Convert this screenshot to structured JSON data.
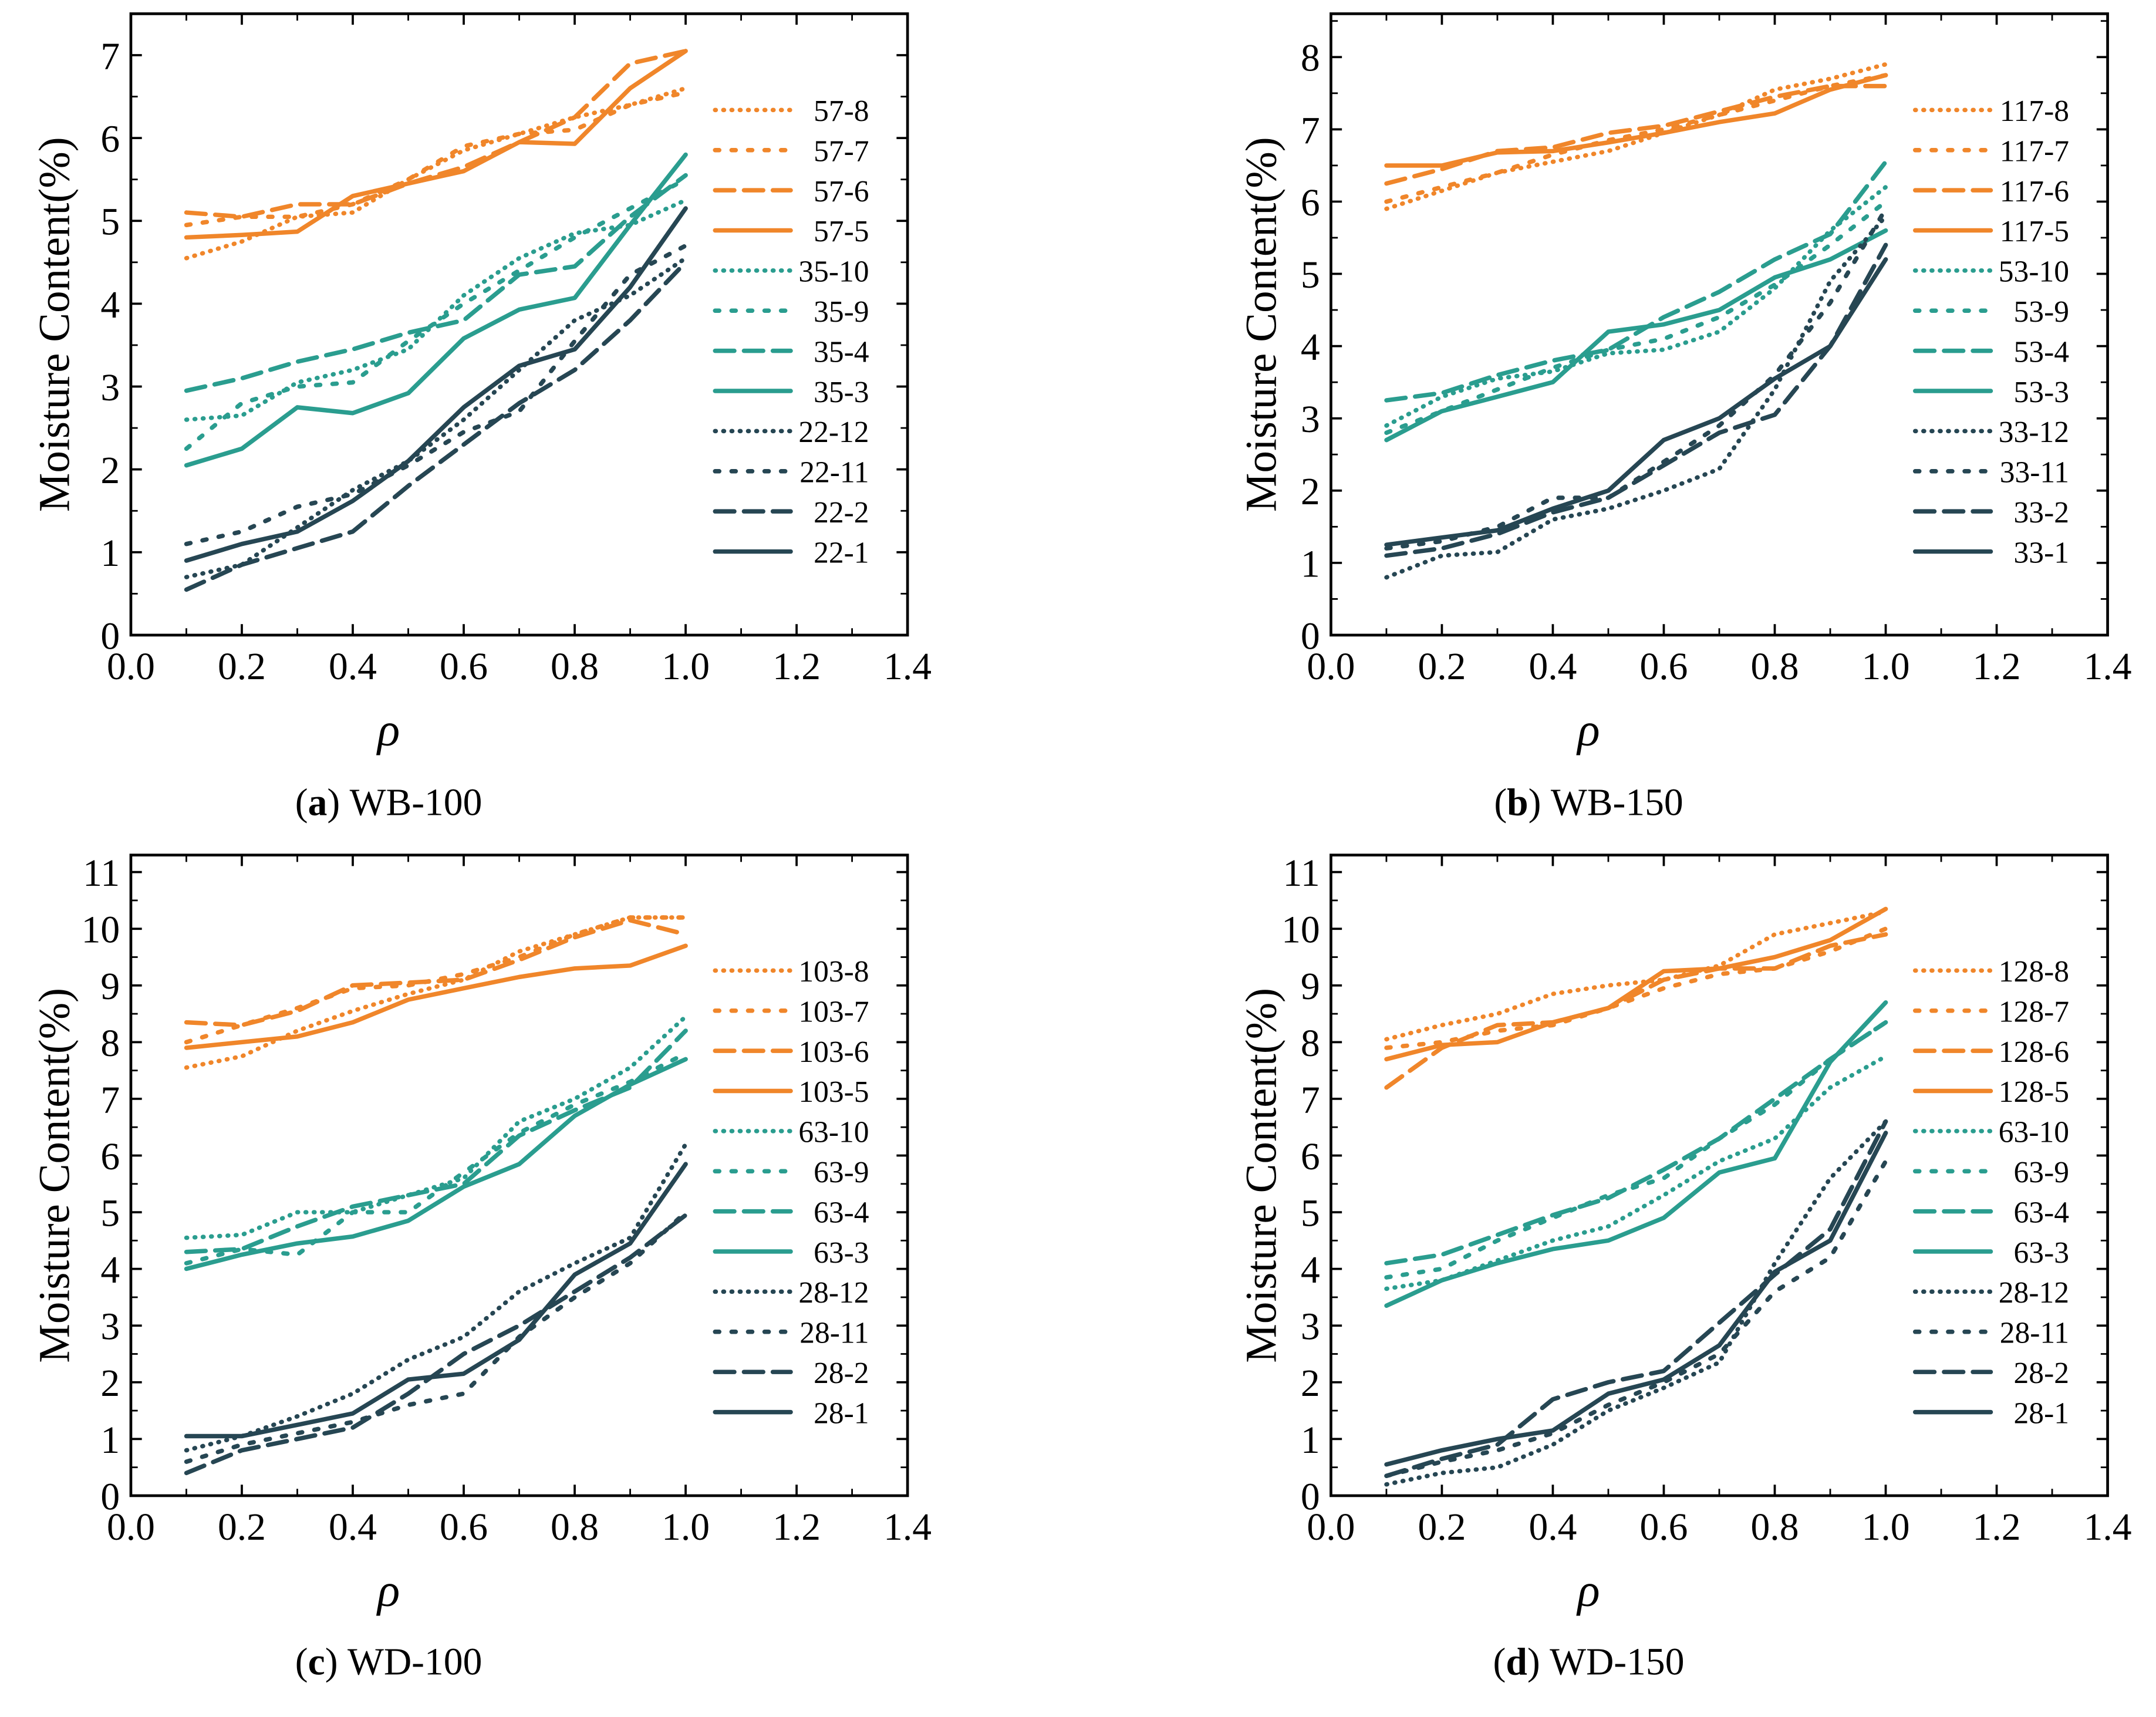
{
  "colors": {
    "orange": "#f0862a",
    "teal": "#2a9d8f",
    "dark": "#264653"
  },
  "chart_data": [
    {
      "type": "line",
      "panel_letter": "(a)",
      "title": "WB-100",
      "xlabel": "ρ",
      "ylabel": "Moisture Content(%)",
      "xlim": [
        0,
        1.4
      ],
      "ylim": [
        0,
        7.5
      ],
      "xticks": [
        "0.0",
        "0.2",
        "0.4",
        "0.6",
        "0.8",
        "1.0",
        "1.2",
        "1.4"
      ],
      "yticks": [
        "0",
        "1",
        "2",
        "3",
        "4",
        "5",
        "6",
        "7"
      ],
      "legend_position": "right",
      "x": [
        0.1,
        0.2,
        0.3,
        0.4,
        0.5,
        0.6,
        0.7,
        0.8,
        0.9,
        1.0
      ],
      "series": [
        {
          "name": "57-8",
          "color": "orange",
          "style": "dotted",
          "values": [
            4.55,
            4.75,
            5.05,
            5.1,
            5.5,
            5.85,
            6.05,
            6.25,
            6.4,
            6.6
          ]
        },
        {
          "name": "57-7",
          "color": "orange",
          "style": "short-dash",
          "values": [
            4.95,
            5.05,
            5.05,
            5.2,
            5.5,
            5.9,
            6.05,
            6.1,
            6.4,
            6.55
          ]
        },
        {
          "name": "57-6",
          "color": "orange",
          "style": "dashed",
          "values": [
            5.1,
            5.05,
            5.2,
            5.2,
            5.45,
            5.65,
            5.95,
            6.25,
            6.9,
            7.05
          ]
        },
        {
          "name": "57-5",
          "color": "orange",
          "style": "solid",
          "values": [
            4.8,
            4.83,
            4.87,
            5.3,
            5.45,
            5.6,
            5.95,
            5.93,
            6.6,
            7.05
          ]
        },
        {
          "name": "35-10",
          "color": "teal",
          "style": "dotted",
          "values": [
            2.6,
            2.65,
            3.05,
            3.2,
            3.45,
            4.1,
            4.55,
            4.85,
            4.95,
            5.25
          ]
        },
        {
          "name": "35-9",
          "color": "teal",
          "style": "short-dash",
          "values": [
            2.25,
            2.8,
            3.0,
            3.05,
            3.55,
            4.0,
            4.4,
            4.8,
            5.15,
            5.5
          ]
        },
        {
          "name": "35-4",
          "color": "teal",
          "style": "dashed",
          "values": [
            2.95,
            3.1,
            3.3,
            3.45,
            3.65,
            3.8,
            4.35,
            4.45,
            5.05,
            5.55
          ]
        },
        {
          "name": "35-3",
          "color": "teal",
          "style": "solid",
          "values": [
            2.05,
            2.25,
            2.75,
            2.68,
            2.92,
            3.58,
            3.93,
            4.07,
            4.95,
            5.8
          ]
        },
        {
          "name": "22-12",
          "color": "dark",
          "style": "dotted",
          "values": [
            0.7,
            0.85,
            1.3,
            1.75,
            2.1,
            2.6,
            3.2,
            3.8,
            4.1,
            4.55
          ]
        },
        {
          "name": "22-11",
          "color": "dark",
          "style": "short-dash",
          "values": [
            1.1,
            1.25,
            1.55,
            1.7,
            2.05,
            2.45,
            2.7,
            3.55,
            4.35,
            4.7
          ]
        },
        {
          "name": "22-2",
          "color": "dark",
          "style": "dashed",
          "values": [
            0.55,
            0.85,
            1.05,
            1.25,
            1.8,
            2.3,
            2.8,
            3.2,
            3.8,
            4.5
          ]
        },
        {
          "name": "22-1",
          "color": "dark",
          "style": "solid",
          "values": [
            0.9,
            1.1,
            1.25,
            1.62,
            2.1,
            2.75,
            3.25,
            3.45,
            4.2,
            5.15
          ]
        }
      ]
    },
    {
      "type": "line",
      "panel_letter": "(b)",
      "title": "WB-150",
      "xlabel": "ρ",
      "ylabel": "Moisture Content(%)",
      "xlim": [
        0,
        1.4
      ],
      "ylim": [
        0,
        8.6
      ],
      "xticks": [
        "0.0",
        "0.2",
        "0.4",
        "0.6",
        "0.8",
        "1.0",
        "1.2",
        "1.4"
      ],
      "yticks": [
        "0",
        "1",
        "2",
        "3",
        "4",
        "5",
        "6",
        "7",
        "8"
      ],
      "legend_position": "right",
      "x": [
        0.1,
        0.2,
        0.3,
        0.4,
        0.5,
        0.6,
        0.7,
        0.8,
        0.9,
        1.0
      ],
      "series": [
        {
          "name": "117-8",
          "color": "orange",
          "style": "dotted",
          "values": [
            5.9,
            6.15,
            6.4,
            6.55,
            6.7,
            6.95,
            7.2,
            7.55,
            7.7,
            7.9
          ]
        },
        {
          "name": "117-7",
          "color": "orange",
          "style": "short-dash",
          "values": [
            6.0,
            6.2,
            6.4,
            6.65,
            6.85,
            7.0,
            7.2,
            7.4,
            7.6,
            7.75
          ]
        },
        {
          "name": "117-6",
          "color": "orange",
          "style": "dashed",
          "values": [
            6.25,
            6.45,
            6.7,
            6.75,
            6.95,
            7.05,
            7.25,
            7.45,
            7.6,
            7.6
          ]
        },
        {
          "name": "117-5",
          "color": "orange",
          "style": "solid",
          "values": [
            6.5,
            6.5,
            6.68,
            6.7,
            6.82,
            6.95,
            7.1,
            7.22,
            7.55,
            7.75
          ]
        },
        {
          "name": "53-10",
          "color": "teal",
          "style": "dotted",
          "values": [
            2.9,
            3.3,
            3.55,
            3.65,
            3.9,
            3.95,
            4.2,
            4.8,
            5.6,
            6.2
          ]
        },
        {
          "name": "53-9",
          "color": "teal",
          "style": "short-dash",
          "values": [
            2.8,
            3.1,
            3.4,
            3.7,
            3.95,
            4.1,
            4.4,
            4.85,
            5.4,
            6.0
          ]
        },
        {
          "name": "53-4",
          "color": "teal",
          "style": "dashed",
          "values": [
            3.25,
            3.35,
            3.6,
            3.8,
            3.95,
            4.4,
            4.75,
            5.2,
            5.55,
            6.55
          ]
        },
        {
          "name": "53-3",
          "color": "teal",
          "style": "solid",
          "values": [
            2.7,
            3.1,
            3.3,
            3.5,
            4.2,
            4.3,
            4.5,
            4.95,
            5.2,
            5.6
          ]
        },
        {
          "name": "33-12",
          "color": "dark",
          "style": "dotted",
          "values": [
            0.8,
            1.1,
            1.15,
            1.6,
            1.75,
            2.0,
            2.3,
            3.4,
            4.9,
            5.8
          ]
        },
        {
          "name": "33-11",
          "color": "dark",
          "style": "short-dash",
          "values": [
            1.2,
            1.3,
            1.5,
            1.9,
            1.9,
            2.4,
            2.9,
            3.6,
            4.6,
            5.9
          ]
        },
        {
          "name": "33-2",
          "color": "dark",
          "style": "dashed",
          "values": [
            1.1,
            1.2,
            1.4,
            1.7,
            1.9,
            2.35,
            2.8,
            3.05,
            4.0,
            5.4
          ]
        },
        {
          "name": "33-1",
          "color": "dark",
          "style": "solid",
          "values": [
            1.25,
            1.35,
            1.45,
            1.75,
            2.0,
            2.7,
            3.0,
            3.55,
            4.0,
            5.2
          ]
        }
      ]
    },
    {
      "type": "line",
      "panel_letter": "(c)",
      "title": "WD-100",
      "xlabel": "ρ",
      "ylabel": "Moisture Content(%)",
      "xlim": [
        0,
        1.4
      ],
      "ylim": [
        0,
        11.3
      ],
      "xticks": [
        "0.0",
        "0.2",
        "0.4",
        "0.6",
        "0.8",
        "1.0",
        "1.2",
        "1.4"
      ],
      "yticks": [
        "0",
        "1",
        "2",
        "3",
        "4",
        "5",
        "6",
        "7",
        "8",
        "9",
        "10",
        "11"
      ],
      "legend_position": "right",
      "x": [
        0.1,
        0.2,
        0.3,
        0.4,
        0.5,
        0.6,
        0.7,
        0.8,
        0.9,
        1.0
      ],
      "series": [
        {
          "name": "103-8",
          "color": "orange",
          "style": "dotted",
          "values": [
            7.55,
            7.75,
            8.2,
            8.55,
            8.85,
            9.1,
            9.6,
            9.9,
            10.2,
            10.2
          ]
        },
        {
          "name": "103-7",
          "color": "orange",
          "style": "short-dash",
          "values": [
            8.0,
            8.3,
            8.6,
            8.95,
            9.0,
            9.2,
            9.5,
            9.9,
            10.2,
            10.2
          ]
        },
        {
          "name": "103-6",
          "color": "orange",
          "style": "dashed",
          "values": [
            8.35,
            8.3,
            8.55,
            9.0,
            9.05,
            9.1,
            9.45,
            9.85,
            10.15,
            9.9
          ]
        },
        {
          "name": "103-5",
          "color": "orange",
          "style": "solid",
          "values": [
            7.9,
            8.0,
            8.1,
            8.35,
            8.75,
            8.95,
            9.15,
            9.3,
            9.35,
            9.7
          ]
        },
        {
          "name": "63-10",
          "color": "teal",
          "style": "dotted",
          "values": [
            4.55,
            4.6,
            5.0,
            5.0,
            5.3,
            5.6,
            6.6,
            7.0,
            7.55,
            8.45
          ]
        },
        {
          "name": "63-9",
          "color": "teal",
          "style": "short-dash",
          "values": [
            4.1,
            4.35,
            4.25,
            5.0,
            5.0,
            5.7,
            6.4,
            6.9,
            7.3,
            7.8
          ]
        },
        {
          "name": "63-4",
          "color": "teal",
          "style": "dashed",
          "values": [
            4.3,
            4.35,
            4.75,
            5.1,
            5.3,
            5.5,
            6.35,
            6.8,
            7.2,
            8.2
          ]
        },
        {
          "name": "63-3",
          "color": "teal",
          "style": "solid",
          "values": [
            4.0,
            4.25,
            4.45,
            4.57,
            4.85,
            5.45,
            5.85,
            6.7,
            7.25,
            7.7
          ]
        },
        {
          "name": "28-12",
          "color": "dark",
          "style": "dotted",
          "values": [
            0.8,
            1.05,
            1.4,
            1.8,
            2.4,
            2.8,
            3.6,
            4.1,
            4.55,
            6.2
          ]
        },
        {
          "name": "28-11",
          "color": "dark",
          "style": "short-dash",
          "values": [
            0.6,
            0.9,
            1.1,
            1.3,
            1.6,
            1.8,
            2.8,
            3.5,
            4.1,
            5.0
          ]
        },
        {
          "name": "28-2",
          "color": "dark",
          "style": "dashed",
          "values": [
            0.4,
            0.8,
            1.0,
            1.2,
            1.8,
            2.5,
            3.0,
            3.6,
            4.2,
            4.95
          ]
        },
        {
          "name": "28-1",
          "color": "dark",
          "style": "solid",
          "values": [
            1.05,
            1.05,
            1.25,
            1.45,
            2.05,
            2.15,
            2.75,
            3.9,
            4.45,
            5.85
          ]
        }
      ]
    },
    {
      "type": "line",
      "panel_letter": "(d)",
      "title": "WD-150",
      "xlabel": "ρ",
      "ylabel": "Moisture Content(%)",
      "xlim": [
        0,
        1.4
      ],
      "ylim": [
        0,
        11.3
      ],
      "xticks": [
        "0.0",
        "0.2",
        "0.4",
        "0.6",
        "0.8",
        "1.0",
        "1.2",
        "1.4"
      ],
      "yticks": [
        "0",
        "1",
        "2",
        "3",
        "4",
        "5",
        "6",
        "7",
        "8",
        "9",
        "10",
        "11"
      ],
      "legend_position": "right",
      "x": [
        0.1,
        0.2,
        0.3,
        0.4,
        0.5,
        0.6,
        0.7,
        0.8,
        0.9,
        1.0
      ],
      "series": [
        {
          "name": "128-8",
          "color": "orange",
          "style": "dotted",
          "values": [
            8.05,
            8.3,
            8.5,
            8.85,
            9.0,
            9.1,
            9.35,
            9.9,
            10.1,
            10.3
          ]
        },
        {
          "name": "128-7",
          "color": "orange",
          "style": "short-dash",
          "values": [
            7.9,
            8.0,
            8.2,
            8.3,
            8.6,
            8.95,
            9.2,
            9.3,
            9.6,
            10.0
          ]
        },
        {
          "name": "128-6",
          "color": "orange",
          "style": "dashed",
          "values": [
            7.2,
            7.9,
            8.3,
            8.35,
            8.6,
            9.1,
            9.3,
            9.3,
            9.7,
            9.9
          ]
        },
        {
          "name": "128-5",
          "color": "orange",
          "style": "solid",
          "values": [
            7.7,
            7.95,
            8.0,
            8.35,
            8.6,
            9.25,
            9.3,
            9.5,
            9.8,
            10.35
          ]
        },
        {
          "name": "63-10",
          "color": "teal",
          "style": "dotted",
          "values": [
            3.65,
            3.8,
            4.15,
            4.5,
            4.75,
            5.3,
            5.9,
            6.3,
            7.2,
            7.75
          ]
        },
        {
          "name": "63-9",
          "color": "teal",
          "style": "short-dash",
          "values": [
            3.85,
            4.0,
            4.5,
            4.9,
            5.3,
            5.6,
            6.3,
            6.9,
            7.7,
            8.35
          ]
        },
        {
          "name": "63-4",
          "color": "teal",
          "style": "dashed",
          "values": [
            4.1,
            4.25,
            4.6,
            4.95,
            5.25,
            5.75,
            6.3,
            7.0,
            7.7,
            8.35
          ]
        },
        {
          "name": "63-3",
          "color": "teal",
          "style": "solid",
          "values": [
            3.35,
            3.8,
            4.1,
            4.35,
            4.5,
            4.9,
            5.7,
            5.95,
            7.65,
            8.7
          ]
        },
        {
          "name": "28-12",
          "color": "dark",
          "style": "dotted",
          "values": [
            0.2,
            0.4,
            0.5,
            0.9,
            1.5,
            1.9,
            2.35,
            4.1,
            5.6,
            6.6
          ]
        },
        {
          "name": "28-11",
          "color": "dark",
          "style": "short-dash",
          "values": [
            0.35,
            0.6,
            0.8,
            1.1,
            1.6,
            2.0,
            2.5,
            3.6,
            4.2,
            5.9
          ]
        },
        {
          "name": "28-2",
          "color": "dark",
          "style": "dashed",
          "values": [
            0.35,
            0.65,
            0.9,
            1.7,
            2.0,
            2.2,
            3.05,
            3.9,
            4.7,
            6.6
          ]
        },
        {
          "name": "28-1",
          "color": "dark",
          "style": "solid",
          "values": [
            0.55,
            0.8,
            1.0,
            1.15,
            1.8,
            2.05,
            2.65,
            3.95,
            4.5,
            6.4
          ]
        }
      ]
    }
  ]
}
